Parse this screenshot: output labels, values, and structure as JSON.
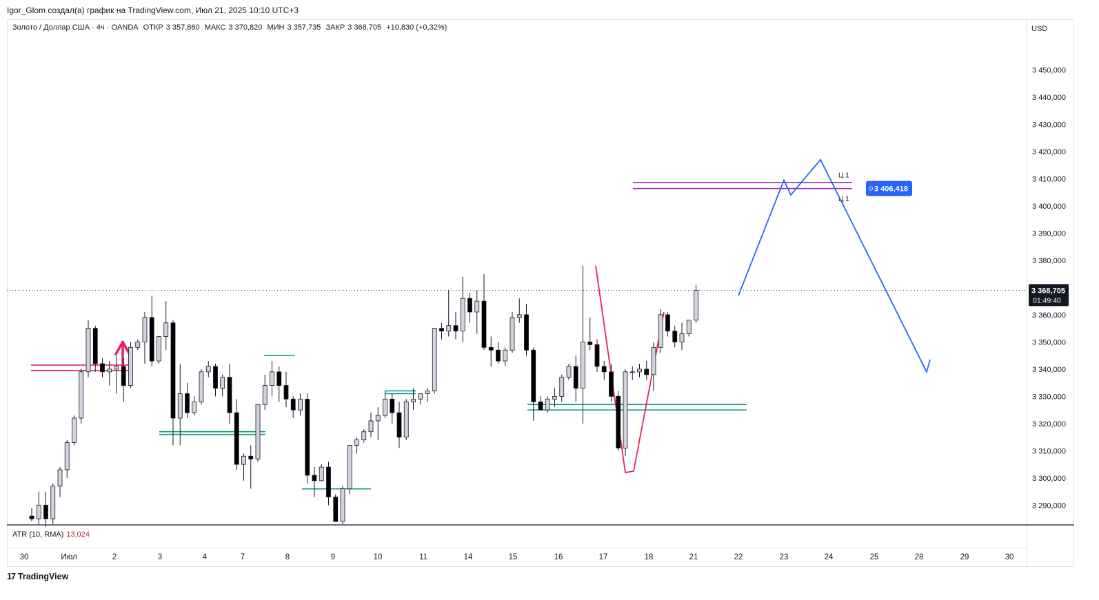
{
  "header": {
    "author_line": "Igor_Glom создал(а) график на TradingView.com, Июл 21, 2025 10:10 UTC+3"
  },
  "legend": {
    "symbol": "Золото / Доллар США · 4ч · OANDA",
    "open_label": "ОТКР",
    "open": "3 357,860",
    "high_label": "МАКС",
    "high": "3 370,820",
    "low_label": "МИН",
    "low": "3 357,735",
    "close_label": "ЗАКР",
    "close": "3 368,705",
    "change": "+10,830 (+0,32%)"
  },
  "currency": "USD",
  "price_axis": {
    "ticks": [
      "3 450,000",
      "3 440,000",
      "3 430,000",
      "3 420,000",
      "3 410,000",
      "3 400,000",
      "3 390,000",
      "3 380,000",
      "3 370,000",
      "3 360,000",
      "3 350,000",
      "3 340,000",
      "3 330,000",
      "3 320,000",
      "3 310,000",
      "3 300,000",
      "3 290,000"
    ],
    "tick_values": [
      3450,
      3440,
      3430,
      3420,
      3410,
      3400,
      3390,
      3380,
      3370,
      3360,
      3350,
      3340,
      3330,
      3320,
      3310,
      3300,
      3290
    ],
    "current_price_label": "3 368,705",
    "countdown_label": "01:49:40",
    "target_label": "3 406,418"
  },
  "time_axis": {
    "labels": [
      "30",
      "Июл",
      "2",
      "3",
      "4",
      "7",
      "8",
      "9",
      "10",
      "11",
      "14",
      "15",
      "16",
      "17",
      "18",
      "21",
      "22",
      "23",
      "24",
      "25",
      "28",
      "29",
      "30"
    ]
  },
  "indicator": {
    "name": "ATR (10, RMA)",
    "value": "13,024"
  },
  "annotations": {
    "level_label_top": "Ц 1",
    "level_label_bottom": "Ц 1"
  },
  "footer": {
    "brand": "TradingView",
    "logo": "17"
  },
  "colors": {
    "up_fill": "#d1d4dc",
    "down_fill": "#000000",
    "candle_border": "#131722",
    "red_level": "#e91e63",
    "teal_level": "#089981",
    "purple_level": "#9c27b0",
    "forecast_line": "#2962ff",
    "zigzag": "#e91e63",
    "price_tag_bg": "#131722",
    "target_tag_bg": "#2962ff"
  },
  "chart_data": {
    "type": "candlestick",
    "title": "Золото / Доллар США · 4ч · OANDA",
    "ylim": [
      3283,
      3461
    ],
    "x_labels": [
      "30",
      "Июл",
      "2",
      "3",
      "4",
      "7",
      "8",
      "9",
      "10",
      "11",
      "14",
      "15",
      "16",
      "17",
      "18",
      "21",
      "22",
      "23",
      "24",
      "25",
      "28",
      "29",
      "30"
    ],
    "candles": [
      {
        "o": 3286,
        "h": 3289,
        "l": 3284,
        "c": 3285
      },
      {
        "o": 3285,
        "h": 3295,
        "l": 3283,
        "c": 3290
      },
      {
        "o": 3290,
        "h": 3295,
        "l": 3282,
        "c": 3285
      },
      {
        "o": 3285,
        "h": 3298,
        "l": 3283,
        "c": 3297
      },
      {
        "o": 3297,
        "h": 3304,
        "l": 3293,
        "c": 3303
      },
      {
        "o": 3303,
        "h": 3314,
        "l": 3300,
        "c": 3313
      },
      {
        "o": 3313,
        "h": 3323,
        "l": 3312,
        "c": 3322
      },
      {
        "o": 3322,
        "h": 3340,
        "l": 3320,
        "c": 3339
      },
      {
        "o": 3339,
        "h": 3358,
        "l": 3337,
        "c": 3355
      },
      {
        "o": 3355,
        "h": 3356,
        "l": 3339,
        "c": 3342
      },
      {
        "o": 3342,
        "h": 3344,
        "l": 3337,
        "c": 3339
      },
      {
        "o": 3339,
        "h": 3343,
        "l": 3334,
        "c": 3340
      },
      {
        "o": 3340,
        "h": 3345,
        "l": 3331,
        "c": 3341
      },
      {
        "o": 3341,
        "h": 3344,
        "l": 3328,
        "c": 3334
      },
      {
        "o": 3334,
        "h": 3350,
        "l": 3333,
        "c": 3348
      },
      {
        "o": 3348,
        "h": 3351,
        "l": 3347,
        "c": 3350
      },
      {
        "o": 3350,
        "h": 3361,
        "l": 3342,
        "c": 3359
      },
      {
        "o": 3359,
        "h": 3367,
        "l": 3341,
        "c": 3343
      },
      {
        "o": 3343,
        "h": 3352,
        "l": 3342,
        "c": 3352
      },
      {
        "o": 3352,
        "h": 3365,
        "l": 3347,
        "c": 3357
      },
      {
        "o": 3357,
        "h": 3358,
        "l": 3312,
        "c": 3322
      },
      {
        "o": 3322,
        "h": 3342,
        "l": 3312,
        "c": 3331
      },
      {
        "o": 3331,
        "h": 3335,
        "l": 3322,
        "c": 3324
      },
      {
        "o": 3324,
        "h": 3330,
        "l": 3323,
        "c": 3328
      },
      {
        "o": 3328,
        "h": 3340,
        "l": 3327,
        "c": 3339
      },
      {
        "o": 3339,
        "h": 3343,
        "l": 3337,
        "c": 3341
      },
      {
        "o": 3341,
        "h": 3342,
        "l": 3330,
        "c": 3333
      },
      {
        "o": 3333,
        "h": 3338,
        "l": 3330,
        "c": 3337
      },
      {
        "o": 3337,
        "h": 3342,
        "l": 3320,
        "c": 3324
      },
      {
        "o": 3324,
        "h": 3329,
        "l": 3303,
        "c": 3305
      },
      {
        "o": 3305,
        "h": 3309,
        "l": 3299,
        "c": 3308
      },
      {
        "o": 3308,
        "h": 3312,
        "l": 3296,
        "c": 3307
      },
      {
        "o": 3307,
        "h": 3327,
        "l": 3306,
        "c": 3327
      },
      {
        "o": 3327,
        "h": 3338,
        "l": 3325,
        "c": 3334
      },
      {
        "o": 3334,
        "h": 3343,
        "l": 3330,
        "c": 3339
      },
      {
        "o": 3339,
        "h": 3341,
        "l": 3328,
        "c": 3334
      },
      {
        "o": 3334,
        "h": 3339,
        "l": 3326,
        "c": 3329
      },
      {
        "o": 3329,
        "h": 3330,
        "l": 3322,
        "c": 3325
      },
      {
        "o": 3325,
        "h": 3331,
        "l": 3323,
        "c": 3329
      },
      {
        "o": 3329,
        "h": 3331,
        "l": 3298,
        "c": 3301
      },
      {
        "o": 3301,
        "h": 3304,
        "l": 3293,
        "c": 3299
      },
      {
        "o": 3299,
        "h": 3305,
        "l": 3299,
        "c": 3304
      },
      {
        "o": 3304,
        "h": 3306,
        "l": 3290,
        "c": 3293
      },
      {
        "o": 3293,
        "h": 3294,
        "l": 3284,
        "c": 3284
      },
      {
        "o": 3284,
        "h": 3297,
        "l": 3283,
        "c": 3296
      },
      {
        "o": 3296,
        "h": 3312,
        "l": 3294,
        "c": 3312
      },
      {
        "o": 3312,
        "h": 3315,
        "l": 3309,
        "c": 3314
      },
      {
        "o": 3314,
        "h": 3318,
        "l": 3313,
        "c": 3317
      },
      {
        "o": 3317,
        "h": 3324,
        "l": 3315,
        "c": 3321
      },
      {
        "o": 3321,
        "h": 3326,
        "l": 3314,
        "c": 3323
      },
      {
        "o": 3323,
        "h": 3332,
        "l": 3322,
        "c": 3329
      },
      {
        "o": 3329,
        "h": 3331,
        "l": 3320,
        "c": 3324
      },
      {
        "o": 3324,
        "h": 3328,
        "l": 3311,
        "c": 3315
      },
      {
        "o": 3315,
        "h": 3329,
        "l": 3314,
        "c": 3328
      },
      {
        "o": 3328,
        "h": 3333,
        "l": 3325,
        "c": 3329
      },
      {
        "o": 3329,
        "h": 3331,
        "l": 3327,
        "c": 3331
      },
      {
        "o": 3331,
        "h": 3333,
        "l": 3328,
        "c": 3332
      },
      {
        "o": 3332,
        "h": 3355,
        "l": 3331,
        "c": 3355
      },
      {
        "o": 3355,
        "h": 3357,
        "l": 3351,
        "c": 3354
      },
      {
        "o": 3354,
        "h": 3369,
        "l": 3352,
        "c": 3356
      },
      {
        "o": 3356,
        "h": 3361,
        "l": 3351,
        "c": 3354
      },
      {
        "o": 3354,
        "h": 3374,
        "l": 3350,
        "c": 3366
      },
      {
        "o": 3366,
        "h": 3368,
        "l": 3357,
        "c": 3361
      },
      {
        "o": 3361,
        "h": 3369,
        "l": 3353,
        "c": 3365
      },
      {
        "o": 3365,
        "h": 3375,
        "l": 3347,
        "c": 3348
      },
      {
        "o": 3348,
        "h": 3352,
        "l": 3341,
        "c": 3347
      },
      {
        "o": 3347,
        "h": 3350,
        "l": 3342,
        "c": 3343
      },
      {
        "o": 3343,
        "h": 3348,
        "l": 3341,
        "c": 3347
      },
      {
        "o": 3347,
        "h": 3361,
        "l": 3346,
        "c": 3359
      },
      {
        "o": 3359,
        "h": 3366,
        "l": 3357,
        "c": 3360
      },
      {
        "o": 3360,
        "h": 3364,
        "l": 3345,
        "c": 3347
      },
      {
        "o": 3347,
        "h": 3348,
        "l": 3321,
        "c": 3328
      },
      {
        "o": 3328,
        "h": 3330,
        "l": 3325,
        "c": 3325
      },
      {
        "o": 3325,
        "h": 3330,
        "l": 3324,
        "c": 3329
      },
      {
        "o": 3329,
        "h": 3333,
        "l": 3326,
        "c": 3330
      },
      {
        "o": 3330,
        "h": 3338,
        "l": 3328,
        "c": 3337
      },
      {
        "o": 3337,
        "h": 3342,
        "l": 3336,
        "c": 3341
      },
      {
        "o": 3341,
        "h": 3345,
        "l": 3328,
        "c": 3333
      },
      {
        "o": 3333,
        "h": 3378,
        "l": 3320,
        "c": 3350
      },
      {
        "o": 3350,
        "h": 3359,
        "l": 3347,
        "c": 3349
      },
      {
        "o": 3349,
        "h": 3351,
        "l": 3339,
        "c": 3341
      },
      {
        "o": 3341,
        "h": 3343,
        "l": 3336,
        "c": 3339
      },
      {
        "o": 3339,
        "h": 3342,
        "l": 3328,
        "c": 3330
      },
      {
        "o": 3330,
        "h": 3332,
        "l": 3310,
        "c": 3311
      },
      {
        "o": 3311,
        "h": 3340,
        "l": 3308,
        "c": 3339
      },
      {
        "o": 3339,
        "h": 3341,
        "l": 3336,
        "c": 3339
      },
      {
        "o": 3339,
        "h": 3342,
        "l": 3337,
        "c": 3340
      },
      {
        "o": 3340,
        "h": 3343,
        "l": 3336,
        "c": 3338
      },
      {
        "o": 3338,
        "h": 3350,
        "l": 3332,
        "c": 3348
      },
      {
        "o": 3348,
        "h": 3362,
        "l": 3346,
        "c": 3360
      },
      {
        "o": 3360,
        "h": 3361,
        "l": 3352,
        "c": 3354
      },
      {
        "o": 3354,
        "h": 3356,
        "l": 3348,
        "c": 3350
      },
      {
        "o": 3350,
        "h": 3357,
        "l": 3347,
        "c": 3353
      },
      {
        "o": 3353,
        "h": 3358,
        "l": 3352,
        "c": 3358
      },
      {
        "o": 3358,
        "h": 3371,
        "l": 3357,
        "c": 3369
      }
    ]
  }
}
